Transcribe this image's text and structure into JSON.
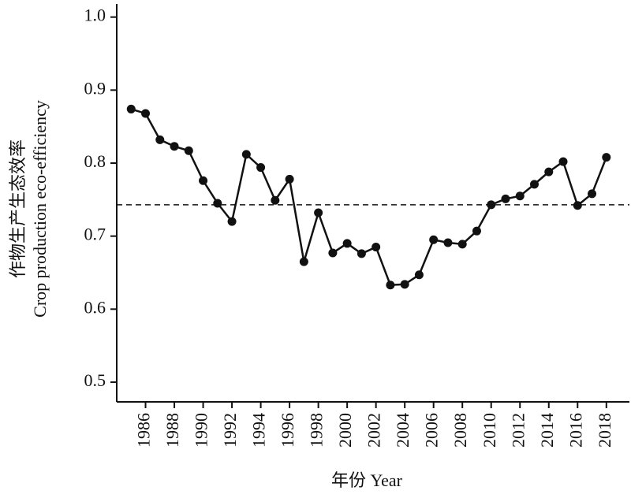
{
  "chart_data": {
    "type": "line",
    "y_label_lines": [
      "作物生产生态效率",
      "Crop production eco-efficiency"
    ],
    "x_label": "年份 Year",
    "x": [
      1985,
      1986,
      1987,
      1988,
      1989,
      1990,
      1991,
      1992,
      1993,
      1994,
      1995,
      1996,
      1997,
      1998,
      1999,
      2000,
      2001,
      2002,
      2003,
      2004,
      2005,
      2006,
      2007,
      2008,
      2009,
      2010,
      2011,
      2012,
      2013,
      2014,
      2015,
      2016,
      2017,
      2018
    ],
    "series": [
      {
        "color": "#111111",
        "values": [
          0.874,
          0.868,
          0.832,
          0.823,
          0.817,
          0.776,
          0.745,
          0.72,
          0.812,
          0.794,
          0.749,
          0.778,
          0.665,
          0.732,
          0.677,
          0.69,
          0.676,
          0.685,
          0.633,
          0.634,
          0.647,
          0.695,
          0.691,
          0.689,
          0.707,
          0.743,
          0.751,
          0.755,
          0.771,
          0.788,
          0.802,
          0.742,
          0.758,
          0.808
        ]
      }
    ],
    "reference_line": 0.743,
    "xlim": [
      1984,
      2019.6
    ],
    "xticks": [
      1986,
      1988,
      1990,
      1992,
      1994,
      1996,
      1998,
      2000,
      2002,
      2004,
      2006,
      2008,
      2010,
      2012,
      2014,
      2016,
      2018
    ],
    "ylim": [
      0.473,
      1.018
    ],
    "yticks": [
      0.5,
      0.6,
      0.7,
      0.8,
      0.9,
      {
        "value": 1,
        "label": "1.0"
      }
    ]
  }
}
